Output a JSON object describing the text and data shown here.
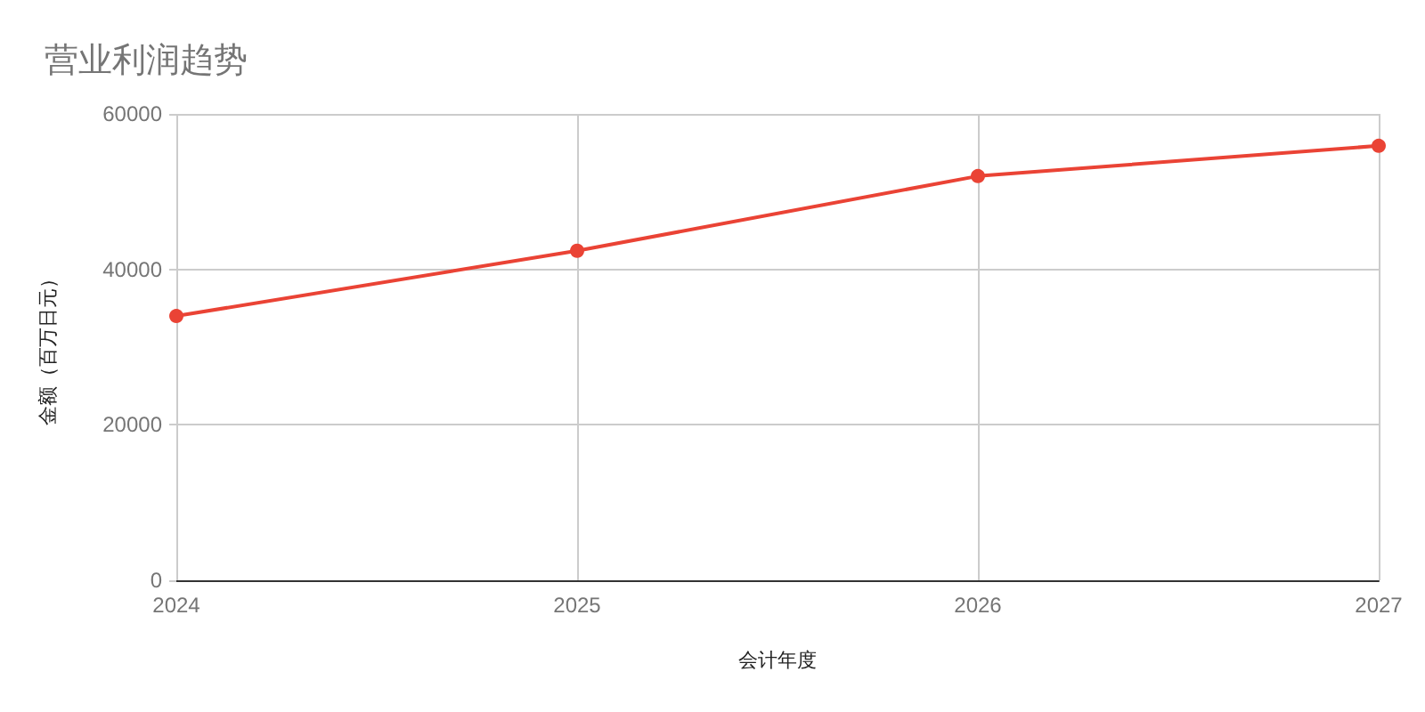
{
  "chart_data": {
    "type": "line",
    "title": "营业利润趋势",
    "xlabel": "会计年度",
    "ylabel": "金额（百万日元）",
    "categories": [
      "2024",
      "2025",
      "2026",
      "2027"
    ],
    "values": [
      34000,
      42400,
      52000,
      55900
    ],
    "color": "#ea4335",
    "ylim": [
      0,
      60000
    ],
    "yticks": [
      0,
      20000,
      40000,
      60000
    ],
    "grid": true,
    "marker": "circle",
    "line_style": "solid"
  }
}
